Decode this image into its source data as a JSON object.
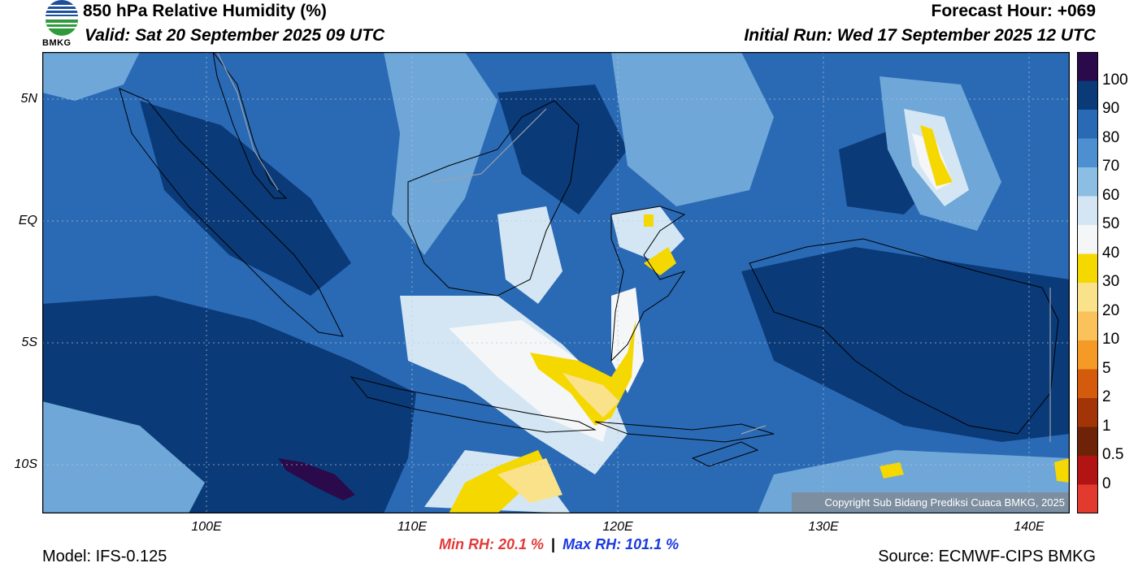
{
  "header": {
    "title": "850 hPa Relative Humidity (%)",
    "valid": "Valid: Sat 20 September 2025 09 UTC",
    "forecast_hour": "Forecast Hour: +069",
    "initial_run": "Initial Run: Wed 17 September 2025 12 UTC"
  },
  "logo": {
    "text": "BMKG",
    "icon": "bmkg-logo"
  },
  "map": {
    "lat_labels": [
      "5N",
      "EQ",
      "5S",
      "10S"
    ],
    "lon_labels": [
      "100E",
      "110E",
      "120E",
      "130E",
      "140E"
    ],
    "copyright": "Copyright Sub Bidang Prediksi Cuaca BMKG, 2025",
    "colors": {
      "land_border": "#000000",
      "ocean_dark": "#0b3a78",
      "mid_blue": "#2a6ab5",
      "light_blue": "#6ea7d8"
    }
  },
  "colorbar": {
    "labels": [
      "100",
      "90",
      "80",
      "70",
      "60",
      "50",
      "40",
      "30",
      "20",
      "10",
      "5",
      "2",
      "1",
      "0.5",
      "0"
    ],
    "colors": [
      "#2a0a4a",
      "#0b3a78",
      "#2a6ab5",
      "#4d8fd0",
      "#8cbde3",
      "#d4e6f3",
      "#f4f6f8",
      "#f5d800",
      "#f9e28a",
      "#fbc25b",
      "#f59a26",
      "#d45a0c",
      "#a33408",
      "#6e2208",
      "#b21414",
      "#e23a2e"
    ]
  },
  "stats": {
    "min_label": "Min RH:  20.1 %",
    "separator": "|",
    "max_label": "Max RH: 101.1 %",
    "min_color": "#e23a3a",
    "max_color": "#1a3ae0"
  },
  "footer": {
    "model": "Model: IFS-0.125",
    "source": "Source: ECMWF-CIPS BMKG"
  }
}
